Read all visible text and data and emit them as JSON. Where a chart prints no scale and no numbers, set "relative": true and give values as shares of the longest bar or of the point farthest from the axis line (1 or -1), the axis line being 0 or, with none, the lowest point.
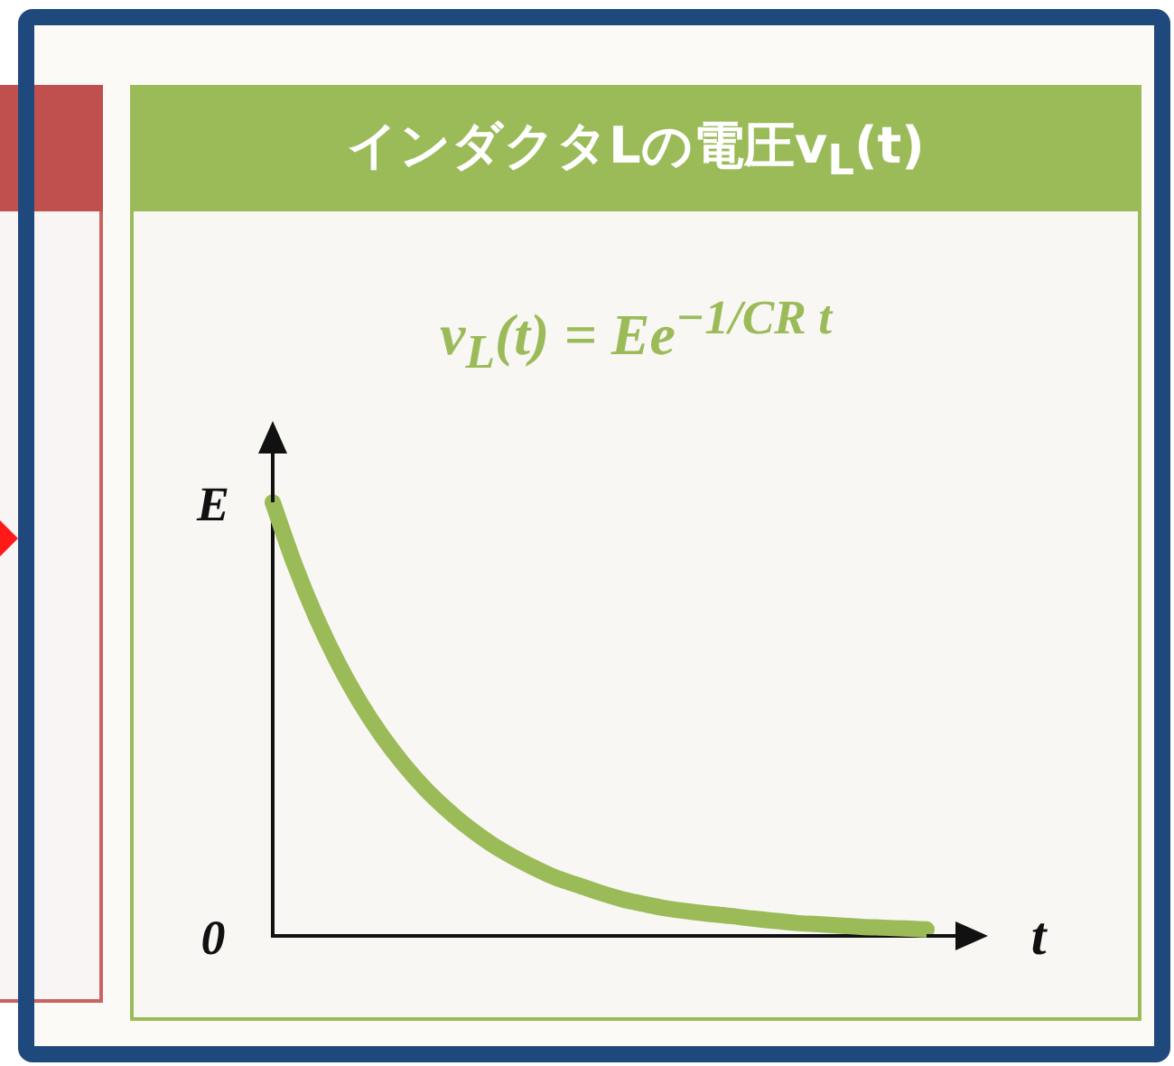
{
  "chart_data": {
    "type": "line",
    "title": "インダクタLの電圧v$_{L}$(t)",
    "subtitle": "v$_{L}$(t) = Ee$^{−1/CR t}$",
    "xlabel": "t",
    "annotations": [
      "E",
      "0"
    ],
    "categories": [
      null,
      null,
      null,
      null,
      null,
      null,
      null,
      null,
      null,
      null,
      null,
      null,
      null,
      null,
      null,
      null,
      null,
      null,
      null,
      null,
      null,
      null,
      null,
      null,
      null,
      null,
      null,
      null,
      null,
      null,
      null
    ],
    "values": [
      1,
      0.857,
      0.734,
      0.629,
      0.539,
      0.462,
      0.396,
      0.339,
      0.291,
      0.249,
      0.213,
      0.183,
      0.157,
      0.134,
      0.117,
      0.1,
      0.085,
      0.074,
      0.064,
      0.057,
      0.051,
      0.046,
      0.04,
      0.035,
      0.03,
      0.027,
      0.024,
      0.021,
      0.019,
      0.017,
      0.015
    ],
    "color": "#9bbb59",
    "relative": true,
    "marker": "none",
    "tick_labels": false
  }
}
